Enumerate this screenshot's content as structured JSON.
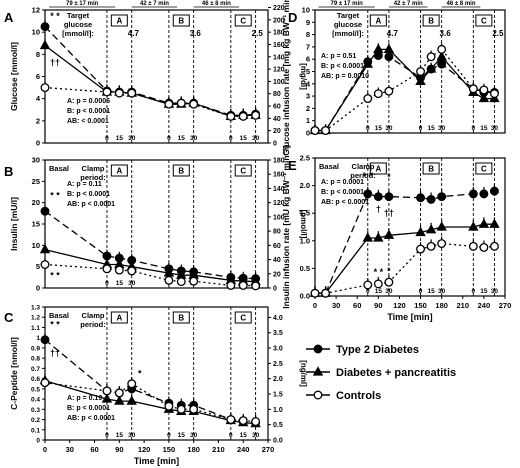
{
  "legend": {
    "items": [
      {
        "label": "Type 2 Diabetes",
        "marker": "circle-filled"
      },
      {
        "label": "Diabetes + pancreatitis",
        "marker": "triangle-filled"
      },
      {
        "label": "Controls",
        "marker": "circle-open"
      }
    ]
  },
  "chart_data": [
    {
      "panel": "A",
      "type": "line",
      "ylabel": "Glucose [mmol/l]",
      "ylabel_right": "[mg/dl]",
      "ylim": [
        0,
        12
      ],
      "yticks": [
        0,
        2,
        4,
        6,
        8,
        10,
        12
      ],
      "yticks_right": [
        0,
        20,
        40,
        60,
        80,
        100,
        120,
        140,
        160,
        180,
        200,
        220
      ],
      "x": [
        0,
        75,
        90,
        105,
        150,
        165,
        180,
        225,
        240,
        255
      ],
      "xlim": [
        0,
        270
      ],
      "phase_boxes": [
        {
          "label": "A"
        },
        {
          "label": "B"
        },
        {
          "label": "C"
        }
      ],
      "target_label": "Target glucose [mmol/l]:",
      "target_values": [
        "4.7",
        "3.6",
        "2.5"
      ],
      "durations": [
        "79 ± 17 min",
        "42 ± 7 min",
        "46 ± 8 min"
      ],
      "stats": [
        "A: p = 0.0006",
        "B: p < 0.0001",
        "AB: < 0.0001"
      ],
      "annotations": [
        "* *",
        "††"
      ],
      "series": [
        {
          "name": "Type 2 Diabetes",
          "values": [
            10.5,
            4.7,
            4.6,
            4.6,
            3.6,
            3.6,
            3.6,
            2.5,
            2.5,
            2.6
          ]
        },
        {
          "name": "Diabetes + pancreatitis",
          "values": [
            8.8,
            4.6,
            4.6,
            4.5,
            3.5,
            3.5,
            3.6,
            2.4,
            2.5,
            2.5
          ]
        },
        {
          "name": "Controls",
          "values": [
            5.0,
            4.6,
            4.5,
            4.5,
            3.5,
            3.6,
            3.5,
            2.4,
            2.4,
            2.5
          ]
        }
      ]
    },
    {
      "panel": "B",
      "type": "line",
      "ylabel": "Insulin [mU/l]",
      "ylabel_right": "[pmol/l]",
      "ylim": [
        0,
        30
      ],
      "yticks": [
        0,
        5,
        10,
        15,
        20,
        25,
        30
      ],
      "yticks_right": [
        0,
        20,
        40,
        60,
        80,
        100,
        120,
        140,
        160,
        180
      ],
      "x": [
        0,
        75,
        90,
        105,
        150,
        165,
        180,
        225,
        240,
        255
      ],
      "xlim": [
        0,
        270
      ],
      "phase_boxes": [
        {
          "label": "A"
        },
        {
          "label": "B"
        },
        {
          "label": "C"
        }
      ],
      "basal_label": "Basal",
      "clamp_label": "Clamp period:",
      "stats": [
        "A: p = 0.11",
        "B: p < 0.0001",
        "AB: p < 0.0001"
      ],
      "annotations": [
        "* *",
        "* *"
      ],
      "series": [
        {
          "name": "Type 2 Diabetes",
          "values": [
            18.0,
            7.5,
            7.0,
            6.5,
            4.5,
            4.0,
            3.8,
            2.5,
            2.3,
            2.2
          ]
        },
        {
          "name": "Diabetes + pancreatitis",
          "values": [
            9.0,
            5.5,
            5.5,
            5.0,
            3.5,
            3.0,
            3.0,
            1.8,
            1.6,
            1.5
          ]
        },
        {
          "name": "Controls",
          "values": [
            5.5,
            4.5,
            4.2,
            4.0,
            1.8,
            1.5,
            1.6,
            0.6,
            0.6,
            0.5
          ]
        }
      ]
    },
    {
      "panel": "C",
      "type": "line",
      "ylabel": "C-Peptide [nmol/l]",
      "ylabel_right": "[ng/ml]",
      "ylim": [
        0,
        1.3
      ],
      "yticks": [
        0,
        0.1,
        0.2,
        0.3,
        0.4,
        0.5,
        0.6,
        0.7,
        0.8,
        0.9,
        1.0,
        1.1,
        1.2,
        1.3
      ],
      "yticks_right": [
        0,
        0.5,
        1.0,
        1.5,
        2.0,
        2.5,
        3.0,
        3.5,
        4.0
      ],
      "x": [
        0,
        75,
        90,
        105,
        150,
        165,
        180,
        225,
        240,
        255
      ],
      "xlim": [
        0,
        270
      ],
      "xticks": [
        0,
        30,
        60,
        90,
        120,
        150,
        180,
        210,
        240,
        270
      ],
      "xlabel": "Time [min]",
      "phase_boxes": [
        {
          "label": "A"
        },
        {
          "label": "B"
        },
        {
          "label": "C"
        }
      ],
      "basal_label": "Basal",
      "clamp_label": "Clamp period:",
      "stats": [
        "A: p = 0.19",
        "B: p < 0.0001",
        "AB: p < 0.0001"
      ],
      "annotations": [
        "* *",
        "††",
        "*"
      ],
      "series": [
        {
          "name": "Type 2 Diabetes",
          "values": [
            0.98,
            0.48,
            0.46,
            0.5,
            0.36,
            0.34,
            0.34,
            0.2,
            0.18,
            0.17
          ]
        },
        {
          "name": "Diabetes + pancreatitis",
          "values": [
            0.58,
            0.4,
            0.38,
            0.38,
            0.3,
            0.28,
            0.28,
            0.19,
            0.17,
            0.16
          ]
        },
        {
          "name": "Controls",
          "values": [
            0.56,
            0.48,
            0.46,
            0.55,
            0.33,
            0.3,
            0.3,
            0.2,
            0.19,
            0.18
          ]
        }
      ]
    },
    {
      "panel": "D",
      "type": "line",
      "ylabel": "Glucose infusion rate [mg kg BW⁻¹ min⁻¹]",
      "ylim": [
        0,
        10
      ],
      "yticks": [
        0,
        1,
        2,
        3,
        4,
        5,
        6,
        7,
        8,
        9,
        10
      ],
      "x": [
        0,
        15,
        75,
        90,
        105,
        150,
        165,
        180,
        225,
        240,
        255
      ],
      "xlim": [
        0,
        270
      ],
      "phase_boxes": [
        {
          "label": "A"
        },
        {
          "label": "B"
        },
        {
          "label": "C"
        }
      ],
      "target_label": "Target glucose [mmol/l]:",
      "target_values": [
        "4.7",
        "3.6",
        "2.5"
      ],
      "durations": [
        "79 ± 17 min",
        "42 ± 7 min",
        "46 ± 8 min"
      ],
      "stats": [
        "A: p = 0.51",
        "B: p < 0.0001",
        "AB: p = 0.0010"
      ],
      "series": [
        {
          "name": "Type 2 Diabetes",
          "values": [
            0.2,
            0.2,
            5.8,
            6.3,
            6.2,
            4.5,
            5.2,
            5.6,
            3.6,
            3.3,
            3.3
          ]
        },
        {
          "name": "Diabetes + pancreatitis",
          "values": [
            0.2,
            0.2,
            5.6,
            6.8,
            6.8,
            4.2,
            5.2,
            6.2,
            3.3,
            2.8,
            2.8
          ]
        },
        {
          "name": "Controls",
          "values": [
            0.2,
            0.2,
            2.8,
            3.2,
            3.4,
            5.0,
            6.2,
            6.8,
            3.6,
            3.5,
            3.2
          ]
        }
      ]
    },
    {
      "panel": "E",
      "type": "line",
      "ylabel": "Insulin infusion rate [mU kg BW⁻¹ min⁻¹]",
      "ylim": [
        0,
        2.5
      ],
      "yticks": [
        0,
        0.5,
        1.0,
        1.5,
        2.0,
        2.5
      ],
      "x": [
        0,
        15,
        75,
        90,
        105,
        150,
        165,
        180,
        225,
        240,
        255
      ],
      "xlim": [
        0,
        270
      ],
      "xticks": [
        0,
        30,
        60,
        90,
        120,
        150,
        180,
        210,
        240,
        270
      ],
      "xlabel": "Time [min]",
      "phase_boxes": [
        {
          "label": "A"
        },
        {
          "label": "B"
        },
        {
          "label": "C"
        }
      ],
      "basal_label": "Basal",
      "clamp_label": "Clamp period:",
      "stats": [
        "A: p = 0.0001",
        "B: p < 0.0001",
        "AB: p < 0.0001"
      ],
      "annotations": [
        "* *",
        "*",
        "†",
        "††",
        "* *",
        "*"
      ],
      "series": [
        {
          "name": "Type 2 Diabetes",
          "values": [
            0.05,
            0.05,
            1.85,
            1.8,
            1.8,
            1.78,
            1.75,
            1.8,
            1.85,
            1.85,
            1.9
          ]
        },
        {
          "name": "Diabetes + pancreatitis",
          "values": [
            0.05,
            0.05,
            1.05,
            1.05,
            1.1,
            1.15,
            1.2,
            1.25,
            1.25,
            1.3,
            1.3
          ]
        },
        {
          "name": "Controls",
          "values": [
            0.05,
            0.05,
            0.2,
            0.22,
            0.25,
            0.85,
            0.9,
            0.95,
            0.9,
            0.88,
            0.9
          ]
        }
      ]
    }
  ]
}
